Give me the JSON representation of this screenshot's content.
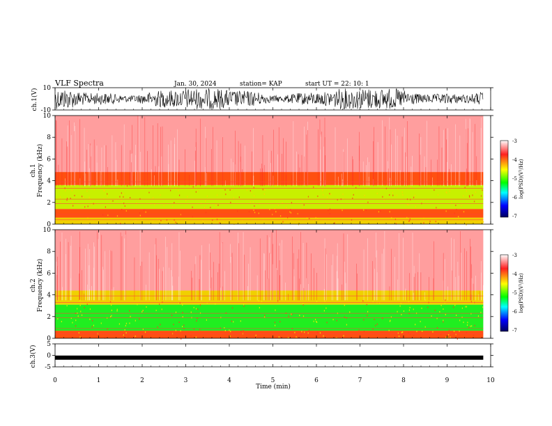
{
  "header": {
    "title": "VLF Spectra",
    "date": "Jan. 30, 2024",
    "station": "station= KAP",
    "start": "start  UT  =   22: 10:  1"
  },
  "colorbar": {
    "label": "log(PSD)(V²/Hz)",
    "ticks": [
      "-3",
      "-4",
      "-5",
      "-6",
      "-7"
    ],
    "stops": [
      "#ffffff",
      "#ff2020",
      "#ffff00",
      "#00ff00",
      "#00ffff",
      "#0000ff",
      "#000060"
    ]
  },
  "chart_data": [
    {
      "type": "line",
      "name": "ch1 waveform",
      "ylabel": "ch.1(V)",
      "ylim": [
        -10,
        10
      ],
      "y_ticks": [
        "10",
        "-10"
      ],
      "xlim": [
        0,
        10
      ],
      "note_color": "#000000"
    },
    {
      "type": "heatmap",
      "name": "ch1 spectrogram",
      "ylabel": "ch.1\nFrequency (kHz)",
      "ylabel_line1": "ch.1",
      "ylabel_line2": "Frequency (kHz)",
      "ylim": [
        0,
        10
      ],
      "y_ticks": [
        "0",
        "2",
        "4",
        "6",
        "8",
        "10"
      ],
      "xlim": [
        0,
        10
      ],
      "bands": [
        {
          "from": 0,
          "to": 0.6,
          "level": -4.4
        },
        {
          "from": 0.6,
          "to": 1.4,
          "level": -4.2
        },
        {
          "from": 1.4,
          "to": 3.6,
          "level": -4.8
        },
        {
          "from": 3.6,
          "to": 4.8,
          "level": -4.2
        },
        {
          "from": 4.8,
          "to": 10,
          "level": -3.6
        }
      ]
    },
    {
      "type": "heatmap",
      "name": "ch2 spectrogram",
      "ylabel": "ch.2\nFrequency (kHz)",
      "ylabel_line1": "ch.2",
      "ylabel_line2": "Frequency (kHz)",
      "ylim": [
        0,
        10
      ],
      "y_ticks": [
        "0",
        "2",
        "4",
        "6",
        "8",
        "10"
      ],
      "xlim": [
        0,
        10
      ],
      "bands": [
        {
          "from": 0,
          "to": 0.7,
          "level": -4.2
        },
        {
          "from": 0.7,
          "to": 3.1,
          "level": -5.2
        },
        {
          "from": 3.1,
          "to": 4.4,
          "level": -4.4
        },
        {
          "from": 4.4,
          "to": 10,
          "level": -3.6
        }
      ]
    },
    {
      "type": "line",
      "name": "ch3 waveform",
      "ylabel": "ch.3(V)",
      "ylim": [
        -5,
        5
      ],
      "y_ticks": [
        "5",
        "0",
        "-5"
      ],
      "xlim": [
        0,
        10
      ],
      "value": -1
    }
  ],
  "x_axis": {
    "label": "Time (min)",
    "ticks": [
      "0",
      "1",
      "2",
      "3",
      "4",
      "5",
      "6",
      "7",
      "8",
      "9",
      "10"
    ],
    "data_end": 9.83
  }
}
